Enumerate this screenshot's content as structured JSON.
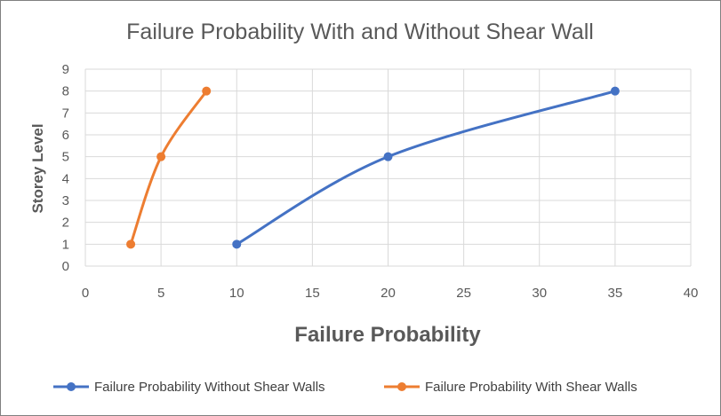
{
  "chart_data": {
    "type": "scatter",
    "title": "Failure Probability With and Without Shear Wall",
    "xlabel": "Failure Probability",
    "ylabel": "Storey Level",
    "xlim": [
      0,
      40
    ],
    "ylim": [
      0,
      9
    ],
    "x_ticks": [
      0,
      5,
      10,
      15,
      20,
      25,
      30,
      35,
      40
    ],
    "y_ticks": [
      0,
      1,
      2,
      3,
      4,
      5,
      6,
      7,
      8,
      9
    ],
    "grid": true,
    "legend_position": "bottom",
    "smooth_lines": true,
    "series": [
      {
        "name": "Failure Probability Without Shear Walls",
        "color": "#4472C4",
        "x": [
          10,
          20,
          35
        ],
        "y": [
          1,
          5,
          8
        ]
      },
      {
        "name": "Failure Probability With Shear Walls",
        "color": "#ED7D31",
        "x": [
          3,
          5,
          8
        ],
        "y": [
          1,
          5,
          8
        ]
      }
    ]
  }
}
